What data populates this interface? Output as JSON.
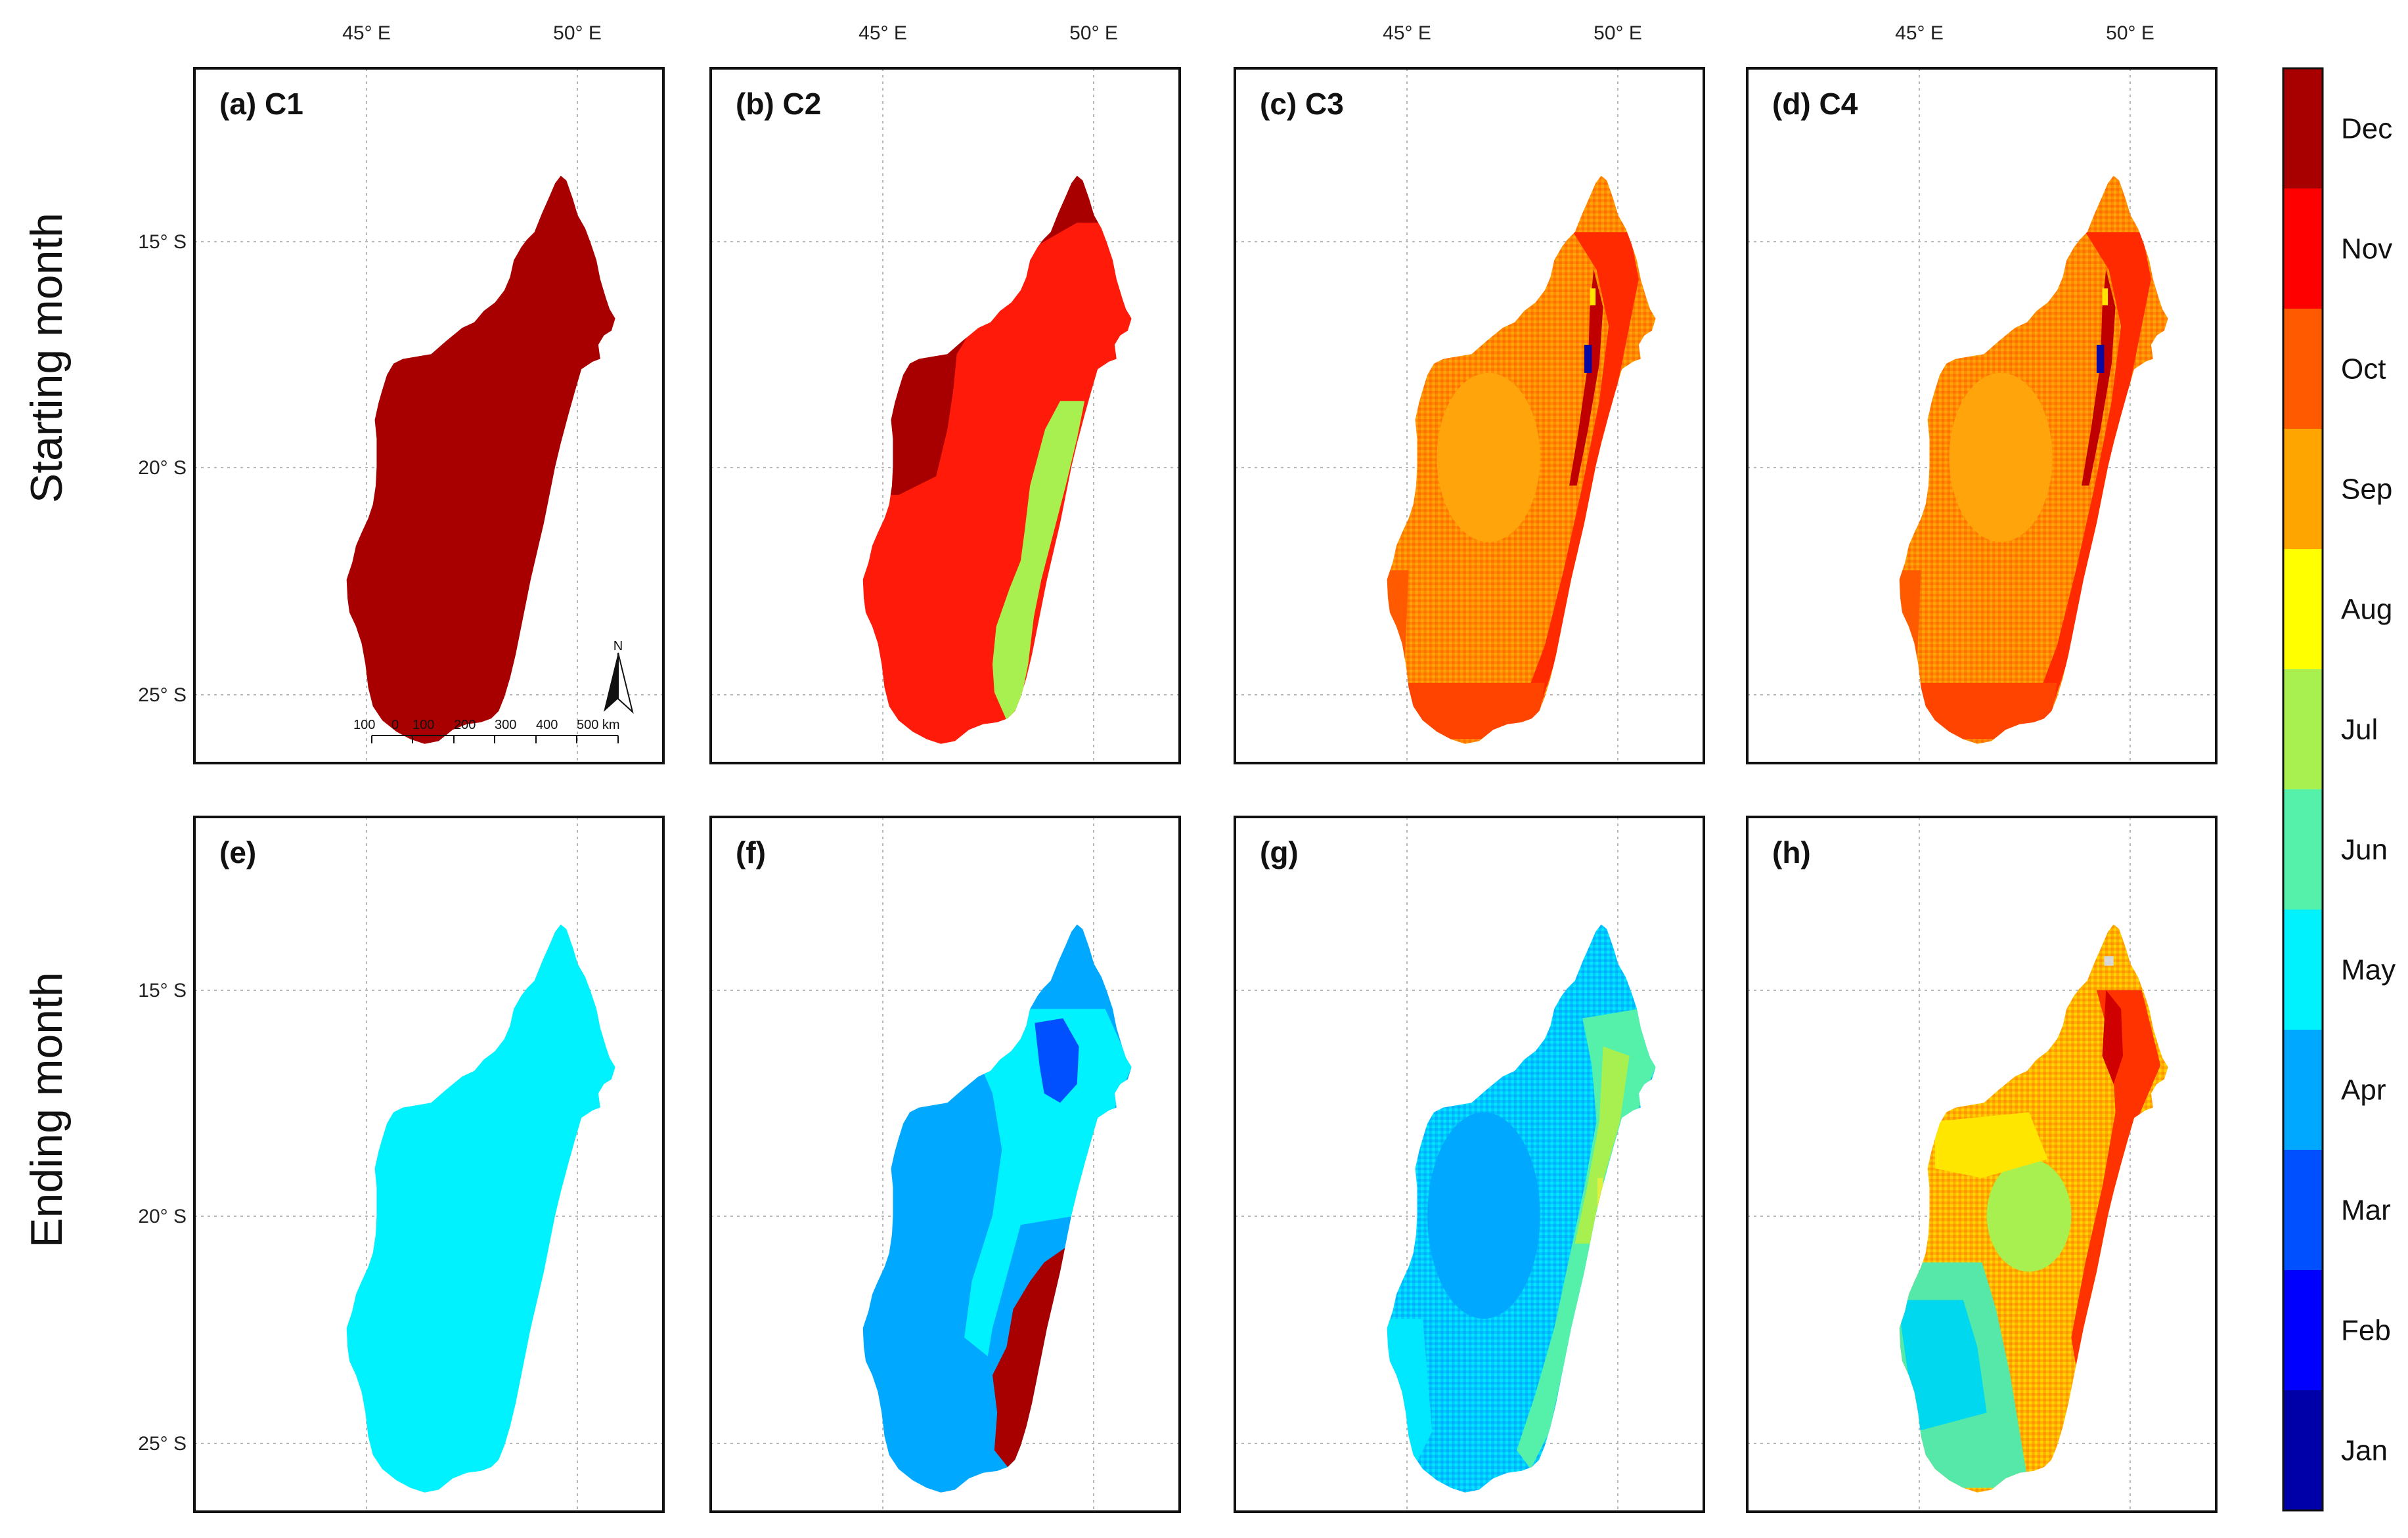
{
  "row_labels": [
    "Starting month",
    "Ending month"
  ],
  "lon_ticks": [
    "45° E",
    "50° E"
  ],
  "lat_ticks": [
    "15° S",
    "20° S",
    "25° S"
  ],
  "panels": [
    {
      "label": "(a) C1",
      "pattern": "uniform",
      "colors": [
        "#a80000"
      ]
    },
    {
      "label": "(b) C2",
      "pattern": "zones",
      "colors": [
        "#a80000",
        "#ff1a0a",
        "#a8f050"
      ]
    },
    {
      "label": "(c) C3",
      "pattern": "mixed",
      "colors": [
        "#ff8a00",
        "#ffa40a",
        "#ff3300",
        "#d00000",
        "#0a0aa0",
        "#ffe600"
      ]
    },
    {
      "label": "(d) C4",
      "pattern": "mixed",
      "colors": [
        "#ff8a00",
        "#ffa40a",
        "#ff3300",
        "#d00000",
        "#0a0aa0",
        "#ffe600"
      ]
    },
    {
      "label": "(e)",
      "pattern": "uniform",
      "colors": [
        "#00f2ff"
      ]
    },
    {
      "label": "(f)",
      "pattern": "zones",
      "colors": [
        "#00a8ff",
        "#00f2ff",
        "#0050ff",
        "#a80000"
      ]
    },
    {
      "label": "(g)",
      "pattern": "mixed",
      "colors": [
        "#00d8ff",
        "#00a8ff",
        "#00f2ff",
        "#55ff9a",
        "#a8f050",
        "#e0f040"
      ]
    },
    {
      "label": "(h)",
      "pattern": "mixed",
      "colors": [
        "#ffa40a",
        "#ffe600",
        "#a8f050",
        "#55e8a8",
        "#ff3300",
        "#ff8a00"
      ]
    }
  ],
  "scalebar": {
    "labels": [
      "100",
      "0",
      "100",
      "200",
      "300",
      "400",
      "500 km"
    ],
    "north": "N"
  },
  "colorbar": {
    "months": [
      "Jan",
      "Feb",
      "Mar",
      "Apr",
      "May",
      "Jun",
      "Jul",
      "Aug",
      "Sep",
      "Oct",
      "Nov",
      "Dec"
    ],
    "colors": [
      "#0000a8",
      "#0000ff",
      "#0050ff",
      "#00a8ff",
      "#00f2ff",
      "#55f0aa",
      "#a8f050",
      "#ffff00",
      "#ffa500",
      "#ff5a00",
      "#ff0000",
      "#a80000"
    ]
  }
}
